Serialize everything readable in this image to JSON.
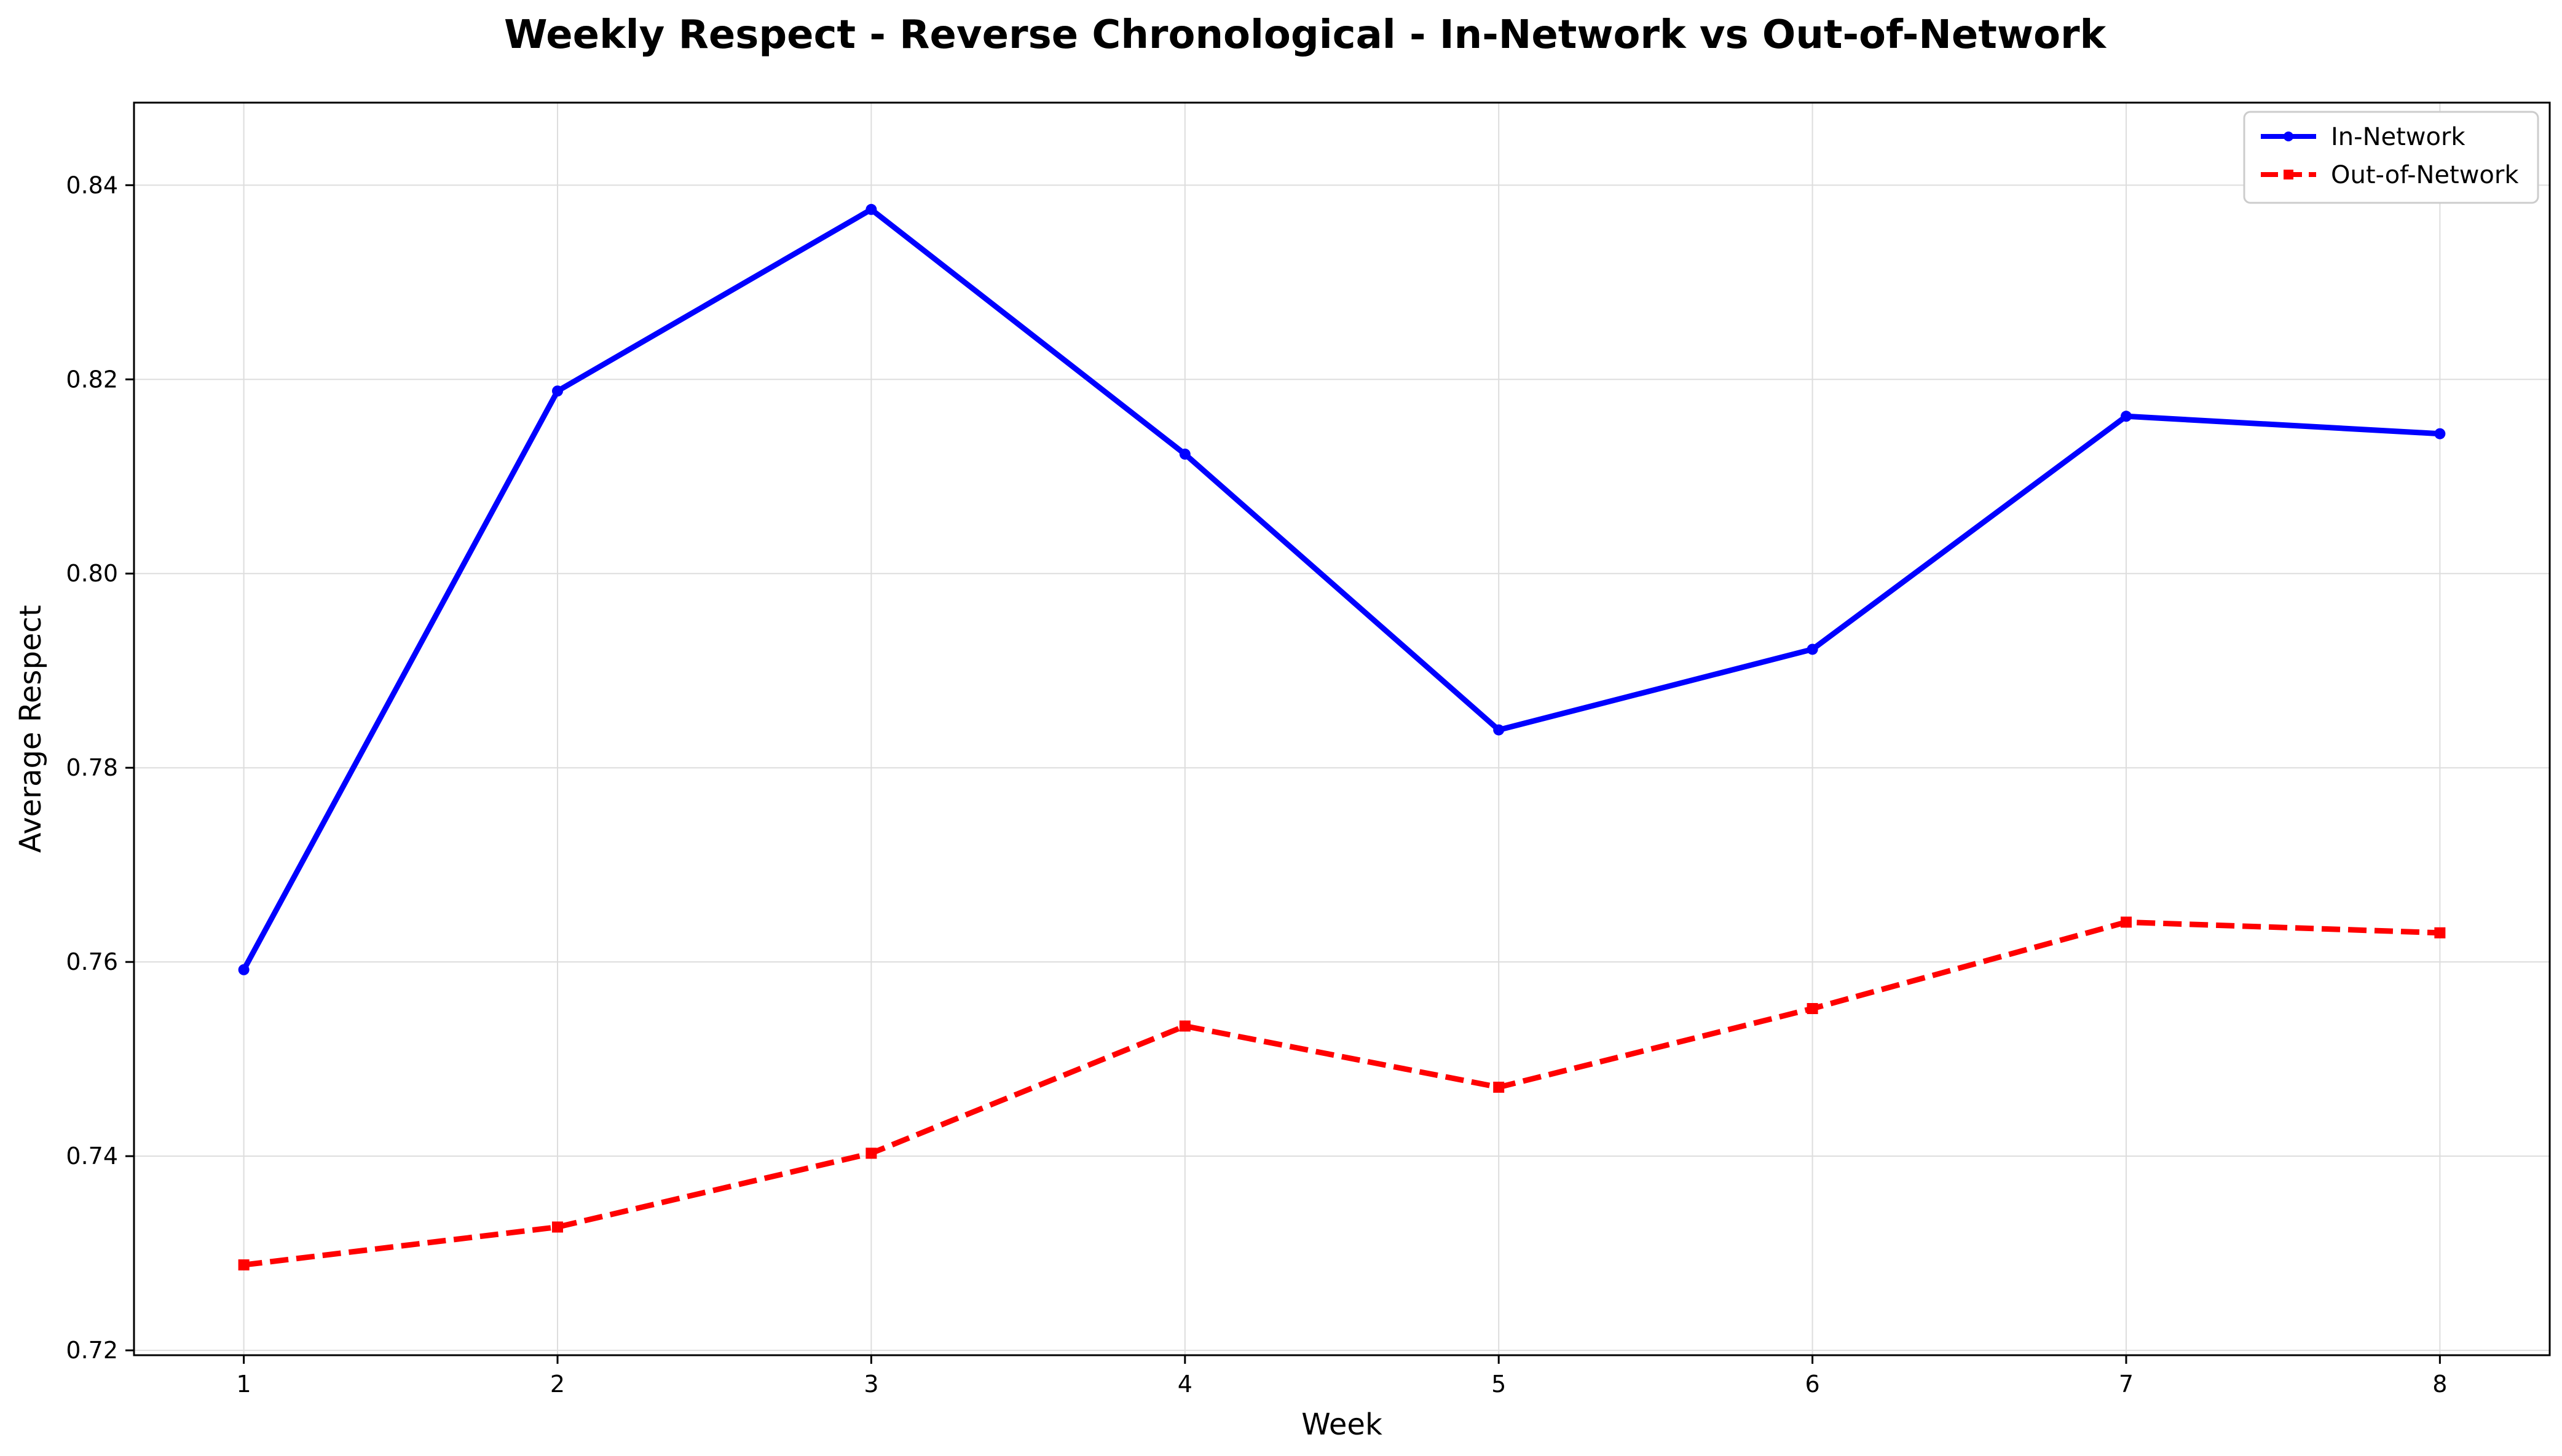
{
  "chart_data": {
    "type": "line",
    "title": "Weekly Respect - Reverse Chronological - In-Network vs Out-of-Network",
    "xlabel": "Week",
    "ylabel": "Average Respect",
    "x": [
      1,
      2,
      3,
      4,
      5,
      6,
      7,
      8
    ],
    "xlim": [
      0.65,
      8.35
    ],
    "ylim": [
      0.7195,
      0.8485
    ],
    "yticks": [
      0.72,
      0.74,
      0.76,
      0.78,
      0.8,
      0.82,
      0.84
    ],
    "ytick_labels": [
      "0.72",
      "0.74",
      "0.76",
      "0.78",
      "0.80",
      "0.82",
      "0.84"
    ],
    "xtick_labels": [
      "1",
      "2",
      "3",
      "4",
      "5",
      "6",
      "7",
      "8"
    ],
    "grid": true,
    "legend_position": "top-right",
    "series": [
      {
        "name": "In-Network",
        "color": "#0000ff",
        "line_style": "solid",
        "marker": "circle",
        "values": [
          0.7592,
          0.8188,
          0.8375,
          0.8123,
          0.7839,
          0.7922,
          0.8162,
          0.8144
        ]
      },
      {
        "name": "Out-of-Network",
        "color": "#ff0000",
        "line_style": "dashed",
        "marker": "square",
        "values": [
          0.7288,
          0.7327,
          0.7403,
          0.7534,
          0.7471,
          0.7552,
          0.7641,
          0.763
        ]
      }
    ]
  }
}
